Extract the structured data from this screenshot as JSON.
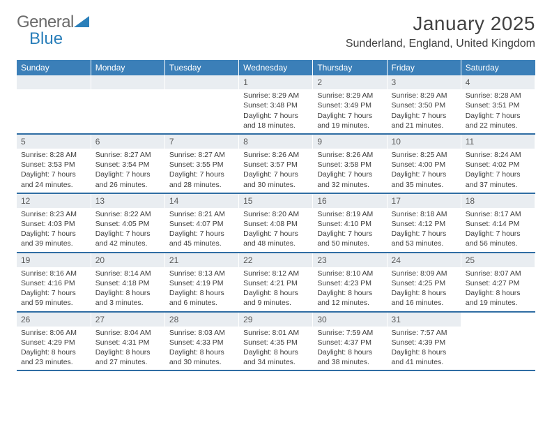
{
  "logo": {
    "word1": "General",
    "word2": "Blue",
    "word1_color": "#6b6b6b",
    "word2_color": "#2a7fba",
    "triangle_color": "#2a7fba"
  },
  "title": "January 2025",
  "location": "Sunderland, England, United Kingdom",
  "header_bg": "#3b7fb8",
  "header_fg": "#ffffff",
  "daynum_bg": "#e9edf1",
  "row_border": "#2f6da3",
  "weekdays": [
    "Sunday",
    "Monday",
    "Tuesday",
    "Wednesday",
    "Thursday",
    "Friday",
    "Saturday"
  ],
  "weeks": [
    [
      {
        "n": "",
        "sr": "",
        "ss": "",
        "dl1": "",
        "dl2": ""
      },
      {
        "n": "",
        "sr": "",
        "ss": "",
        "dl1": "",
        "dl2": ""
      },
      {
        "n": "",
        "sr": "",
        "ss": "",
        "dl1": "",
        "dl2": ""
      },
      {
        "n": "1",
        "sr": "Sunrise: 8:29 AM",
        "ss": "Sunset: 3:48 PM",
        "dl1": "Daylight: 7 hours",
        "dl2": "and 18 minutes."
      },
      {
        "n": "2",
        "sr": "Sunrise: 8:29 AM",
        "ss": "Sunset: 3:49 PM",
        "dl1": "Daylight: 7 hours",
        "dl2": "and 19 minutes."
      },
      {
        "n": "3",
        "sr": "Sunrise: 8:29 AM",
        "ss": "Sunset: 3:50 PM",
        "dl1": "Daylight: 7 hours",
        "dl2": "and 21 minutes."
      },
      {
        "n": "4",
        "sr": "Sunrise: 8:28 AM",
        "ss": "Sunset: 3:51 PM",
        "dl1": "Daylight: 7 hours",
        "dl2": "and 22 minutes."
      }
    ],
    [
      {
        "n": "5",
        "sr": "Sunrise: 8:28 AM",
        "ss": "Sunset: 3:53 PM",
        "dl1": "Daylight: 7 hours",
        "dl2": "and 24 minutes."
      },
      {
        "n": "6",
        "sr": "Sunrise: 8:27 AM",
        "ss": "Sunset: 3:54 PM",
        "dl1": "Daylight: 7 hours",
        "dl2": "and 26 minutes."
      },
      {
        "n": "7",
        "sr": "Sunrise: 8:27 AM",
        "ss": "Sunset: 3:55 PM",
        "dl1": "Daylight: 7 hours",
        "dl2": "and 28 minutes."
      },
      {
        "n": "8",
        "sr": "Sunrise: 8:26 AM",
        "ss": "Sunset: 3:57 PM",
        "dl1": "Daylight: 7 hours",
        "dl2": "and 30 minutes."
      },
      {
        "n": "9",
        "sr": "Sunrise: 8:26 AM",
        "ss": "Sunset: 3:58 PM",
        "dl1": "Daylight: 7 hours",
        "dl2": "and 32 minutes."
      },
      {
        "n": "10",
        "sr": "Sunrise: 8:25 AM",
        "ss": "Sunset: 4:00 PM",
        "dl1": "Daylight: 7 hours",
        "dl2": "and 35 minutes."
      },
      {
        "n": "11",
        "sr": "Sunrise: 8:24 AM",
        "ss": "Sunset: 4:02 PM",
        "dl1": "Daylight: 7 hours",
        "dl2": "and 37 minutes."
      }
    ],
    [
      {
        "n": "12",
        "sr": "Sunrise: 8:23 AM",
        "ss": "Sunset: 4:03 PM",
        "dl1": "Daylight: 7 hours",
        "dl2": "and 39 minutes."
      },
      {
        "n": "13",
        "sr": "Sunrise: 8:22 AM",
        "ss": "Sunset: 4:05 PM",
        "dl1": "Daylight: 7 hours",
        "dl2": "and 42 minutes."
      },
      {
        "n": "14",
        "sr": "Sunrise: 8:21 AM",
        "ss": "Sunset: 4:07 PM",
        "dl1": "Daylight: 7 hours",
        "dl2": "and 45 minutes."
      },
      {
        "n": "15",
        "sr": "Sunrise: 8:20 AM",
        "ss": "Sunset: 4:08 PM",
        "dl1": "Daylight: 7 hours",
        "dl2": "and 48 minutes."
      },
      {
        "n": "16",
        "sr": "Sunrise: 8:19 AM",
        "ss": "Sunset: 4:10 PM",
        "dl1": "Daylight: 7 hours",
        "dl2": "and 50 minutes."
      },
      {
        "n": "17",
        "sr": "Sunrise: 8:18 AM",
        "ss": "Sunset: 4:12 PM",
        "dl1": "Daylight: 7 hours",
        "dl2": "and 53 minutes."
      },
      {
        "n": "18",
        "sr": "Sunrise: 8:17 AM",
        "ss": "Sunset: 4:14 PM",
        "dl1": "Daylight: 7 hours",
        "dl2": "and 56 minutes."
      }
    ],
    [
      {
        "n": "19",
        "sr": "Sunrise: 8:16 AM",
        "ss": "Sunset: 4:16 PM",
        "dl1": "Daylight: 7 hours",
        "dl2": "and 59 minutes."
      },
      {
        "n": "20",
        "sr": "Sunrise: 8:14 AM",
        "ss": "Sunset: 4:18 PM",
        "dl1": "Daylight: 8 hours",
        "dl2": "and 3 minutes."
      },
      {
        "n": "21",
        "sr": "Sunrise: 8:13 AM",
        "ss": "Sunset: 4:19 PM",
        "dl1": "Daylight: 8 hours",
        "dl2": "and 6 minutes."
      },
      {
        "n": "22",
        "sr": "Sunrise: 8:12 AM",
        "ss": "Sunset: 4:21 PM",
        "dl1": "Daylight: 8 hours",
        "dl2": "and 9 minutes."
      },
      {
        "n": "23",
        "sr": "Sunrise: 8:10 AM",
        "ss": "Sunset: 4:23 PM",
        "dl1": "Daylight: 8 hours",
        "dl2": "and 12 minutes."
      },
      {
        "n": "24",
        "sr": "Sunrise: 8:09 AM",
        "ss": "Sunset: 4:25 PM",
        "dl1": "Daylight: 8 hours",
        "dl2": "and 16 minutes."
      },
      {
        "n": "25",
        "sr": "Sunrise: 8:07 AM",
        "ss": "Sunset: 4:27 PM",
        "dl1": "Daylight: 8 hours",
        "dl2": "and 19 minutes."
      }
    ],
    [
      {
        "n": "26",
        "sr": "Sunrise: 8:06 AM",
        "ss": "Sunset: 4:29 PM",
        "dl1": "Daylight: 8 hours",
        "dl2": "and 23 minutes."
      },
      {
        "n": "27",
        "sr": "Sunrise: 8:04 AM",
        "ss": "Sunset: 4:31 PM",
        "dl1": "Daylight: 8 hours",
        "dl2": "and 27 minutes."
      },
      {
        "n": "28",
        "sr": "Sunrise: 8:03 AM",
        "ss": "Sunset: 4:33 PM",
        "dl1": "Daylight: 8 hours",
        "dl2": "and 30 minutes."
      },
      {
        "n": "29",
        "sr": "Sunrise: 8:01 AM",
        "ss": "Sunset: 4:35 PM",
        "dl1": "Daylight: 8 hours",
        "dl2": "and 34 minutes."
      },
      {
        "n": "30",
        "sr": "Sunrise: 7:59 AM",
        "ss": "Sunset: 4:37 PM",
        "dl1": "Daylight: 8 hours",
        "dl2": "and 38 minutes."
      },
      {
        "n": "31",
        "sr": "Sunrise: 7:57 AM",
        "ss": "Sunset: 4:39 PM",
        "dl1": "Daylight: 8 hours",
        "dl2": "and 41 minutes."
      },
      {
        "n": "",
        "sr": "",
        "ss": "",
        "dl1": "",
        "dl2": ""
      }
    ]
  ]
}
